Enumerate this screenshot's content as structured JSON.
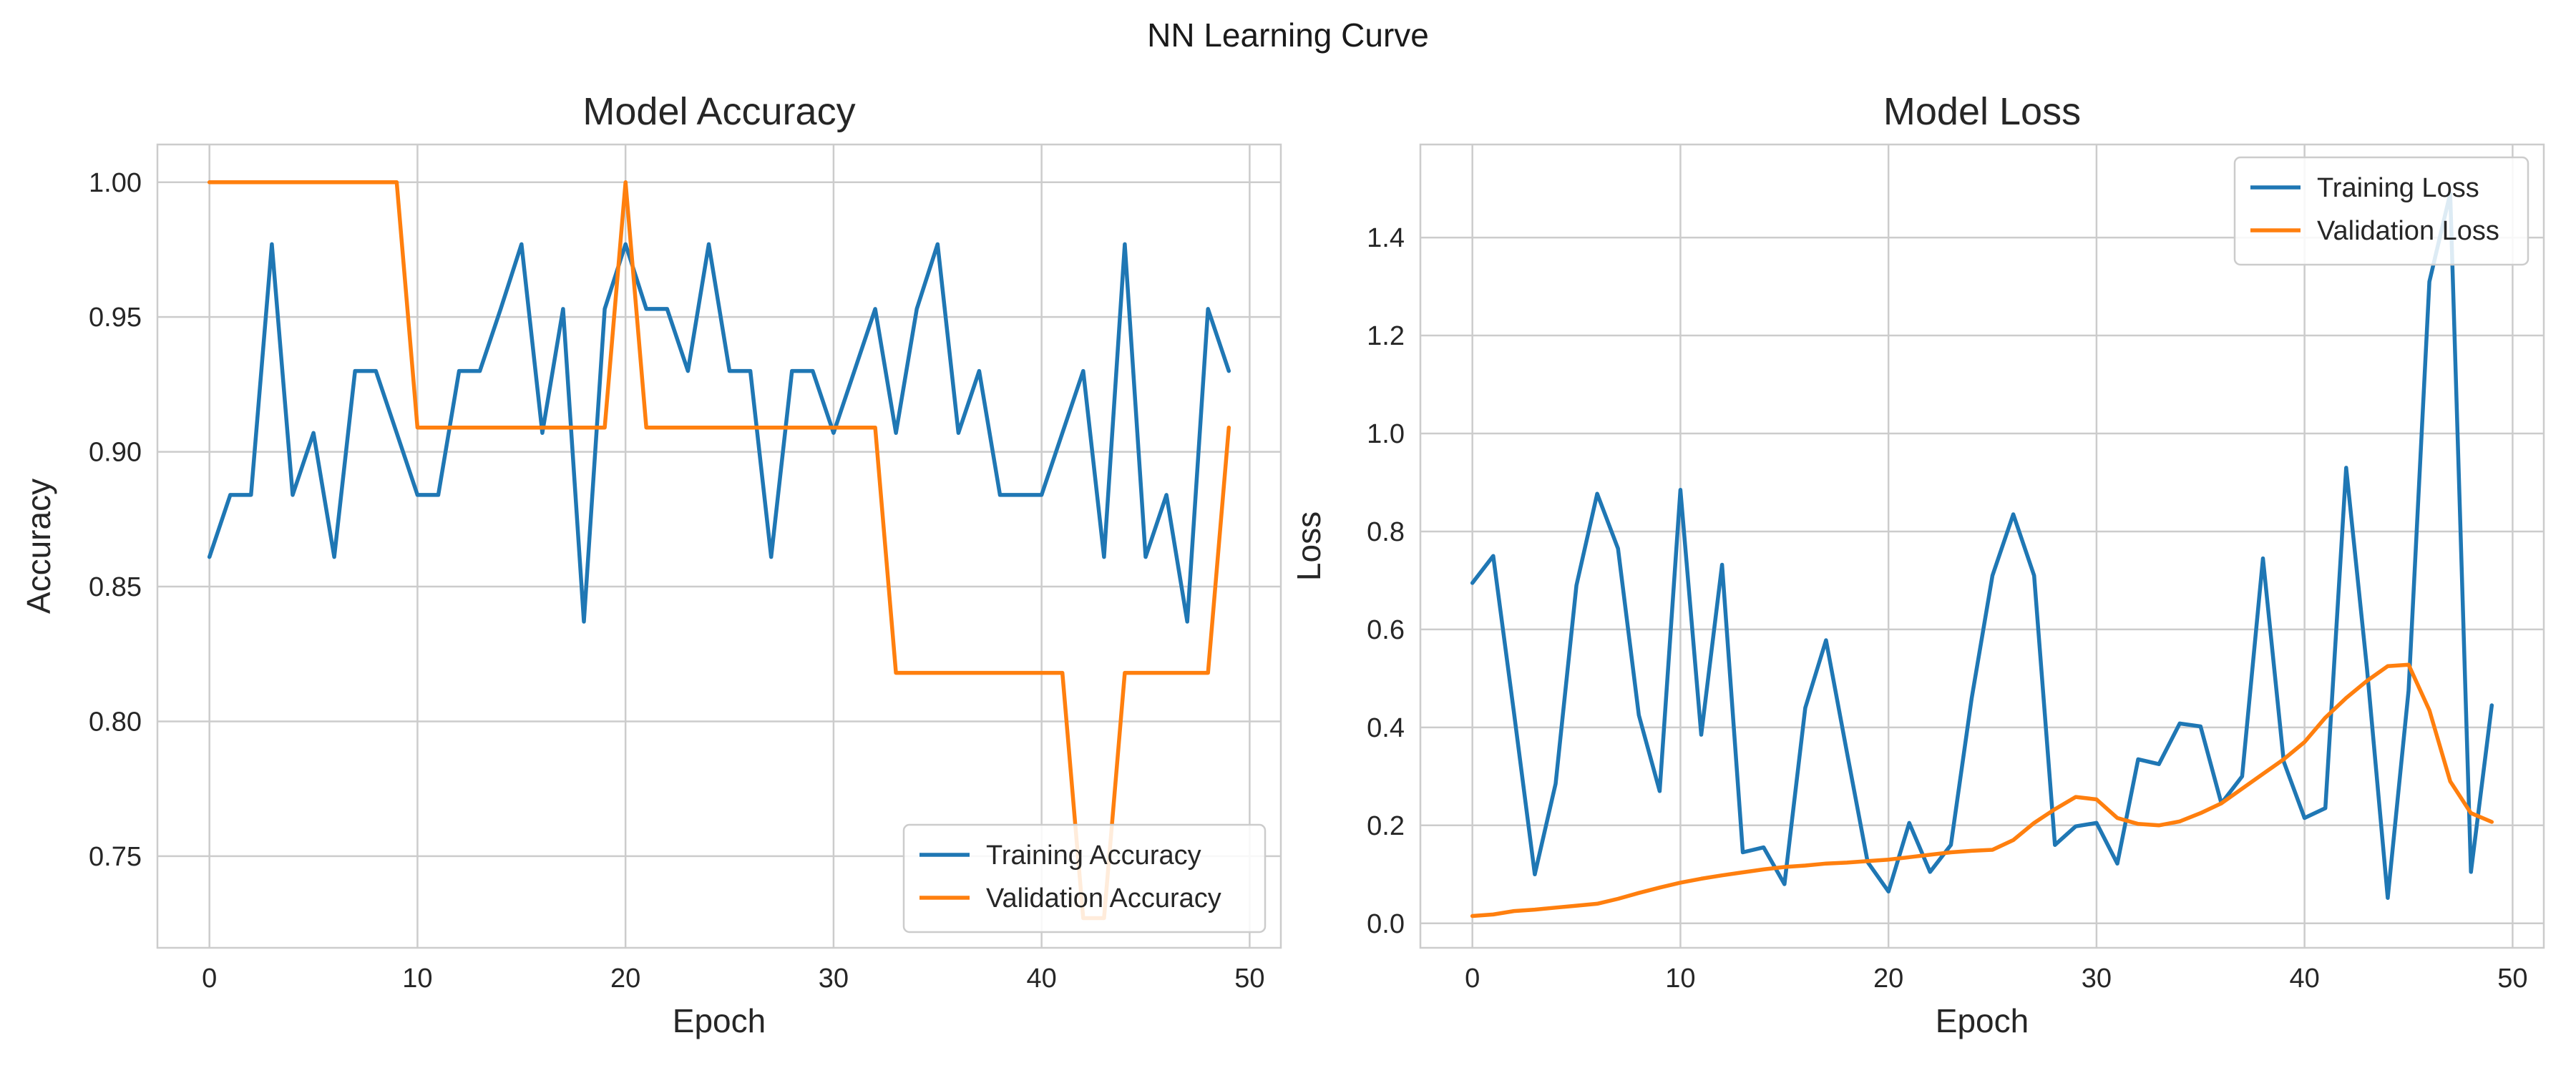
{
  "figure": {
    "suptitle": "NN Learning Curve"
  },
  "colors": {
    "training": "#1f77b4",
    "validation": "#ff7f0e",
    "grid": "#cccccc",
    "spine": "#cccccc"
  },
  "chart_data": [
    {
      "type": "line",
      "title": "Model Accuracy",
      "xlabel": "Epoch",
      "ylabel": "Accuracy",
      "xlim": [
        -2.5,
        51.5
      ],
      "ylim": [
        0.716,
        1.014
      ],
      "xticks": [
        0,
        10,
        20,
        30,
        40,
        50
      ],
      "xtick_labels": [
        "0",
        "10",
        "20",
        "30",
        "40",
        "50"
      ],
      "yticks": [
        0.75,
        0.8,
        0.85,
        0.9,
        0.95,
        1.0
      ],
      "ytick_labels": [
        "0.75",
        "0.80",
        "0.85",
        "0.90",
        "0.95",
        "1.00"
      ],
      "grid": true,
      "legend_position": "lower right",
      "x": [
        0,
        1,
        2,
        3,
        4,
        5,
        6,
        7,
        8,
        9,
        10,
        11,
        12,
        13,
        14,
        15,
        16,
        17,
        18,
        19,
        20,
        21,
        22,
        23,
        24,
        25,
        26,
        27,
        28,
        29,
        30,
        31,
        32,
        33,
        34,
        35,
        36,
        37,
        38,
        39,
        40,
        41,
        42,
        43,
        44,
        45,
        46,
        47,
        48,
        49
      ],
      "series": [
        {
          "name": "Training Accuracy",
          "color": "#1f77b4",
          "values": [
            0.861,
            0.884,
            0.884,
            0.977,
            0.884,
            0.907,
            0.861,
            0.93,
            0.93,
            0.907,
            0.884,
            0.884,
            0.93,
            0.93,
            0.953,
            0.977,
            0.907,
            0.953,
            0.837,
            0.953,
            0.977,
            0.953,
            0.953,
            0.93,
            0.977,
            0.93,
            0.93,
            0.861,
            0.93,
            0.93,
            0.907,
            0.93,
            0.953,
            0.907,
            0.953,
            0.977,
            0.907,
            0.93,
            0.884,
            0.884,
            0.884,
            0.907,
            0.93,
            0.861,
            0.977,
            0.861,
            0.884,
            0.837,
            0.953,
            0.93
          ]
        },
        {
          "name": "Validation Accuracy",
          "color": "#ff7f0e",
          "values": [
            1.0,
            1.0,
            1.0,
            1.0,
            1.0,
            1.0,
            1.0,
            1.0,
            1.0,
            1.0,
            0.909,
            0.909,
            0.909,
            0.909,
            0.909,
            0.909,
            0.909,
            0.909,
            0.909,
            0.909,
            1.0,
            0.909,
            0.909,
            0.909,
            0.909,
            0.909,
            0.909,
            0.909,
            0.909,
            0.909,
            0.909,
            0.909,
            0.909,
            0.818,
            0.818,
            0.818,
            0.818,
            0.818,
            0.818,
            0.818,
            0.818,
            0.818,
            0.727,
            0.727,
            0.818,
            0.818,
            0.818,
            0.818,
            0.818,
            0.909
          ]
        }
      ]
    },
    {
      "type": "line",
      "title": "Model Loss",
      "xlabel": "Epoch",
      "ylabel": "Loss",
      "xlim": [
        -2.5,
        51.5
      ],
      "ylim": [
        -0.05,
        1.59
      ],
      "xticks": [
        0,
        10,
        20,
        30,
        40,
        50
      ],
      "xtick_labels": [
        "0",
        "10",
        "20",
        "30",
        "40",
        "50"
      ],
      "yticks": [
        0.0,
        0.2,
        0.4,
        0.6,
        0.8,
        1.0,
        1.2,
        1.4
      ],
      "ytick_labels": [
        "0.0",
        "0.2",
        "0.4",
        "0.6",
        "0.8",
        "1.0",
        "1.2",
        "1.4"
      ],
      "grid": true,
      "legend_position": "upper right",
      "x": [
        0,
        1,
        2,
        3,
        4,
        5,
        6,
        7,
        8,
        9,
        10,
        11,
        12,
        13,
        14,
        15,
        16,
        17,
        18,
        19,
        20,
        21,
        22,
        23,
        24,
        25,
        26,
        27,
        28,
        29,
        30,
        31,
        32,
        33,
        34,
        35,
        36,
        37,
        38,
        39,
        40,
        41,
        42,
        43,
        44,
        45,
        46,
        47,
        48,
        49
      ],
      "series": [
        {
          "name": "Training Loss",
          "color": "#1f77b4",
          "values": [
            0.695,
            0.75,
            0.43,
            0.1,
            0.285,
            0.69,
            0.877,
            0.765,
            0.425,
            0.27,
            0.885,
            0.385,
            0.732,
            0.145,
            0.155,
            0.08,
            0.44,
            0.578,
            0.35,
            0.125,
            0.065,
            0.205,
            0.105,
            0.16,
            0.46,
            0.71,
            0.835,
            0.71,
            0.16,
            0.198,
            0.205,
            0.122,
            0.335,
            0.325,
            0.408,
            0.402,
            0.245,
            0.3,
            0.745,
            0.33,
            0.215,
            0.235,
            0.93,
            0.52,
            0.052,
            0.475,
            1.31,
            1.49,
            0.105,
            0.445
          ]
        },
        {
          "name": "Validation Loss",
          "color": "#ff7f0e",
          "values": [
            0.015,
            0.018,
            0.025,
            0.028,
            0.032,
            0.036,
            0.04,
            0.05,
            0.062,
            0.073,
            0.083,
            0.091,
            0.098,
            0.104,
            0.11,
            0.115,
            0.118,
            0.122,
            0.124,
            0.127,
            0.13,
            0.135,
            0.14,
            0.145,
            0.148,
            0.15,
            0.17,
            0.205,
            0.233,
            0.258,
            0.253,
            0.215,
            0.203,
            0.2,
            0.208,
            0.225,
            0.245,
            0.275,
            0.305,
            0.335,
            0.37,
            0.42,
            0.46,
            0.495,
            0.525,
            0.528,
            0.435,
            0.29,
            0.225,
            0.207
          ]
        }
      ]
    }
  ]
}
